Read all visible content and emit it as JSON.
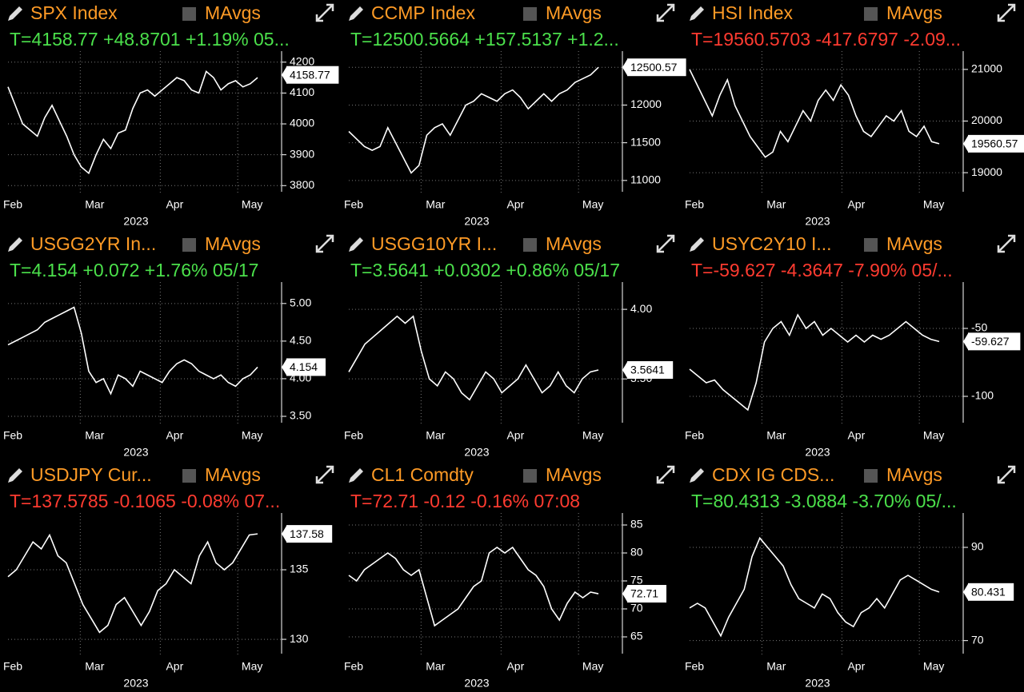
{
  "chart_data": [
    {
      "type": "line",
      "title": "SPX Index",
      "button": "MAvgs",
      "subtitle": "T=4158.77 +48.8701 +1.19% 05...",
      "title_color": "#ff9b26",
      "subtitle_color": "#4be04b",
      "color": "#ffffff",
      "months": [
        "Feb",
        "Mar",
        "Apr",
        "May"
      ],
      "year": "2023",
      "grid": true,
      "values": [
        4120,
        4060,
        4000,
        3980,
        3960,
        4020,
        4060,
        4010,
        3960,
        3900,
        3860,
        3840,
        3900,
        3950,
        3920,
        3970,
        3980,
        4050,
        4100,
        4110,
        4090,
        4110,
        4130,
        4150,
        4140,
        4110,
        4100,
        4170,
        4150,
        4110,
        4130,
        4140,
        4120,
        4130,
        4150
      ],
      "ylim": [
        3780,
        4215
      ],
      "yticks": [
        3800,
        3900,
        4000,
        4100,
        4200
      ],
      "last": {
        "value": 4158.77,
        "label": "4158.77"
      }
    },
    {
      "type": "line",
      "title": "CCMP Index",
      "button": "MAvgs",
      "subtitle": "T=12500.5664 +157.5137 +1.2...",
      "title_color": "#ff9b26",
      "subtitle_color": "#4be04b",
      "color": "#ffffff",
      "months": [
        "Feb",
        "Mar",
        "Apr",
        "May"
      ],
      "year": "2023",
      "grid": true,
      "values": [
        11650,
        11550,
        11450,
        11400,
        11450,
        11700,
        11500,
        11300,
        11100,
        11200,
        11600,
        11700,
        11750,
        11600,
        11800,
        12000,
        12050,
        12150,
        12100,
        12050,
        12150,
        12200,
        12100,
        11950,
        12050,
        12150,
        12050,
        12150,
        12200,
        12300,
        12350,
        12400,
        12500
      ],
      "ylim": [
        10850,
        12630
      ],
      "yticks": [
        11000,
        11500,
        12000,
        12500
      ],
      "last": {
        "value": 12500.57,
        "label": "12500.57"
      }
    },
    {
      "type": "line",
      "title": "HSI Index",
      "button": "MAvgs",
      "subtitle": "T=19560.5703 -417.6797 -2.09...",
      "title_color": "#ff9b26",
      "subtitle_color": "#ff3b30",
      "color": "#ffffff",
      "months": [
        "Feb",
        "Mar",
        "Apr",
        "May"
      ],
      "year": "2023",
      "grid": true,
      "values": [
        21000,
        20700,
        20400,
        20100,
        20500,
        20800,
        20300,
        20000,
        19700,
        19500,
        19300,
        19400,
        19800,
        19600,
        19900,
        20200,
        20000,
        20400,
        20600,
        20400,
        20700,
        20500,
        20100,
        19800,
        19700,
        19900,
        20100,
        20000,
        20200,
        19800,
        19700,
        19900,
        19600,
        19560
      ],
      "ylim": [
        18630,
        21230
      ],
      "yticks": [
        19000,
        20000,
        21000
      ],
      "last": {
        "value": 19560.57,
        "label": "19560.57"
      }
    },
    {
      "type": "line",
      "title": "USGG2YR In...",
      "button": "MAvgs",
      "subtitle": "T=4.154 +0.072 +1.76% 05/17",
      "title_color": "#ff9b26",
      "subtitle_color": "#4be04b",
      "color": "#ffffff",
      "months": [
        "Feb",
        "Mar",
        "Apr",
        "May"
      ],
      "year": "2023",
      "grid": true,
      "values": [
        4.45,
        4.5,
        4.55,
        4.6,
        4.65,
        4.75,
        4.8,
        4.85,
        4.9,
        4.95,
        4.6,
        4.1,
        3.95,
        4.0,
        3.8,
        4.05,
        4.0,
        3.9,
        4.1,
        4.05,
        4.0,
        3.95,
        4.1,
        4.2,
        4.25,
        4.2,
        4.1,
        4.05,
        4.0,
        4.05,
        3.95,
        3.9,
        4.0,
        4.05,
        4.154
      ],
      "ylim": [
        3.415,
        5.2
      ],
      "yticks": [
        {
          "value": 3.5,
          "label": "3.50"
        },
        {
          "value": 4,
          "label": "4.00"
        },
        {
          "value": 4.5,
          "label": "4.50"
        },
        {
          "value": 5,
          "label": "5.00"
        }
      ],
      "last": {
        "value": 4.154,
        "label": "4.154"
      }
    },
    {
      "type": "line",
      "title": "USGG10YR I...",
      "button": "MAvgs",
      "subtitle": "T=3.5641 +0.0302 +0.86% 05/17",
      "title_color": "#ff9b26",
      "subtitle_color": "#4be04b",
      "color": "#ffffff",
      "months": [
        "Feb",
        "Mar",
        "Apr",
        "May"
      ],
      "year": "2023",
      "grid": true,
      "values": [
        3.55,
        3.65,
        3.75,
        3.8,
        3.85,
        3.9,
        3.95,
        3.9,
        3.95,
        3.7,
        3.5,
        3.45,
        3.55,
        3.5,
        3.4,
        3.35,
        3.45,
        3.55,
        3.5,
        3.4,
        3.45,
        3.5,
        3.6,
        3.5,
        3.4,
        3.45,
        3.55,
        3.45,
        3.4,
        3.5,
        3.55,
        3.5641
      ],
      "ylim": [
        3.185,
        4.15
      ],
      "yticks": [
        {
          "value": 3.5,
          "label": "3.50"
        },
        {
          "value": 4,
          "label": "4.00"
        }
      ],
      "last": {
        "value": 3.5641,
        "label": "3.5641"
      }
    },
    {
      "type": "line",
      "title": "USYC2Y10 I...",
      "button": "MAvgs",
      "subtitle": "T=-59.627 -4.3647 -7.90% 05/...",
      "title_color": "#ff9b26",
      "subtitle_color": "#ff3b30",
      "color": "#ffffff",
      "months": [
        "Feb",
        "Mar",
        "Apr",
        "May"
      ],
      "year": "2023",
      "grid": true,
      "values": [
        -80,
        -85,
        -90,
        -88,
        -95,
        -100,
        -105,
        -110,
        -90,
        -60,
        -50,
        -45,
        -55,
        -40,
        -50,
        -45,
        -55,
        -50,
        -55,
        -60,
        -55,
        -60,
        -55,
        -58,
        -55,
        -50,
        -45,
        -50,
        -55,
        -58,
        -59.627
      ],
      "ylim": [
        -119.4,
        -20.6
      ],
      "yticks": [
        -100,
        -50
      ],
      "last": {
        "value": -59.627,
        "label": "-59.627"
      }
    },
    {
      "type": "line",
      "title": "USDJPY Cur...",
      "button": "MAvgs",
      "subtitle": "T=137.5785 -0.1065 -0.08% 07...",
      "title_color": "#ff9b26",
      "subtitle_color": "#ff3b30",
      "color": "#ffffff",
      "months": [
        "Feb",
        "Mar",
        "Apr",
        "May"
      ],
      "year": "2023",
      "grid": true,
      "values": [
        134.5,
        135,
        136,
        137,
        136.5,
        137.5,
        136,
        135.5,
        134,
        132.5,
        131.5,
        130.5,
        131,
        132.5,
        133,
        132,
        131,
        132,
        133.5,
        134,
        135,
        134.5,
        134,
        136,
        137,
        135.5,
        135,
        135.5,
        136.5,
        137.5,
        137.5785
      ],
      "ylim": [
        128.97,
        138.62
      ],
      "yticks": [
        130,
        135
      ],
      "last": {
        "value": 137.58,
        "label": "137.58"
      }
    },
    {
      "type": "line",
      "title": "CL1 Comdty",
      "button": "MAvgs",
      "subtitle": "T=72.71 -0.12 -0.16% 07:08",
      "title_color": "#ff9b26",
      "subtitle_color": "#ff3b30",
      "color": "#ffffff",
      "months": [
        "Feb",
        "Mar",
        "Apr",
        "May"
      ],
      "year": "2023",
      "grid": true,
      "values": [
        76,
        75,
        77,
        78,
        79,
        80,
        79,
        77,
        76,
        77,
        72,
        67,
        68,
        69,
        70,
        72,
        74,
        75,
        80,
        81,
        80,
        81,
        79,
        77,
        76,
        74,
        70,
        68,
        71,
        73,
        72,
        73,
        72.71
      ],
      "ylim": [
        62,
        86
      ],
      "yticks": [
        65,
        70,
        75,
        80,
        85
      ],
      "last": {
        "value": 72.71,
        "label": "72.71"
      }
    },
    {
      "type": "line",
      "title": "CDX IG CDS...",
      "button": "MAvgs",
      "subtitle": "T=80.4313 -3.0884 -3.70% 05/...",
      "title_color": "#ff9b26",
      "subtitle_color": "#4be04b",
      "color": "#ffffff",
      "months": [
        "Feb",
        "Mar",
        "Apr",
        "May"
      ],
      "year": "2023",
      "grid": true,
      "values": [
        77,
        78,
        77,
        74,
        71,
        75,
        78,
        81,
        88,
        92,
        90,
        88,
        86,
        82,
        79,
        78,
        77,
        80,
        79,
        76,
        74,
        73,
        76,
        77,
        79,
        77,
        80,
        83,
        84,
        83,
        82,
        81,
        80.43
      ],
      "ylim": [
        67.2,
        96
      ],
      "yticks": [
        70,
        90
      ],
      "last": {
        "value": 80.431,
        "label": "80.431"
      }
    }
  ]
}
